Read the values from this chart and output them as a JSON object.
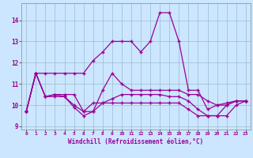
{
  "xlabel": "Windchill (Refroidissement éolien,°C)",
  "x": [
    0,
    1,
    2,
    3,
    4,
    5,
    6,
    7,
    8,
    9,
    10,
    11,
    12,
    13,
    14,
    15,
    16,
    17,
    18,
    19,
    20,
    21,
    22,
    23
  ],
  "line_top": [
    9.7,
    11.5,
    11.5,
    11.5,
    11.5,
    11.5,
    11.5,
    12.1,
    12.5,
    13.0,
    13.0,
    13.0,
    12.5,
    13.0,
    14.35,
    14.35,
    13.0,
    10.7,
    10.7,
    9.8,
    10.0,
    10.1,
    10.2,
    10.2
  ],
  "line2": [
    9.7,
    11.5,
    10.4,
    10.5,
    10.5,
    10.5,
    9.7,
    9.7,
    10.7,
    11.5,
    11.0,
    10.7,
    10.7,
    10.7,
    10.7,
    10.7,
    10.7,
    10.5,
    10.5,
    10.2,
    10.0,
    10.0,
    10.2,
    10.2
  ],
  "line3": [
    9.7,
    11.5,
    10.4,
    10.5,
    10.4,
    10.0,
    9.7,
    10.1,
    10.1,
    10.3,
    10.5,
    10.5,
    10.5,
    10.5,
    10.5,
    10.4,
    10.4,
    10.2,
    9.8,
    9.5,
    9.5,
    10.0,
    10.2,
    10.2
  ],
  "line_bot": [
    9.7,
    11.5,
    10.4,
    10.4,
    10.4,
    9.9,
    9.5,
    9.7,
    10.1,
    10.1,
    10.1,
    10.1,
    10.1,
    10.1,
    10.1,
    10.1,
    10.1,
    9.8,
    9.5,
    9.5,
    9.5,
    9.5,
    10.0,
    10.2
  ],
  "line_color": "#990099",
  "bg_color": "#cce6ff",
  "grid_color": "#99bbcc",
  "ylim_min": 8.85,
  "ylim_max": 14.8,
  "yticks": [
    9,
    10,
    11,
    12,
    13,
    14
  ],
  "xticks": [
    0,
    1,
    2,
    3,
    4,
    5,
    6,
    7,
    8,
    9,
    10,
    11,
    12,
    13,
    14,
    15,
    16,
    17,
    18,
    19,
    20,
    21,
    22,
    23
  ]
}
